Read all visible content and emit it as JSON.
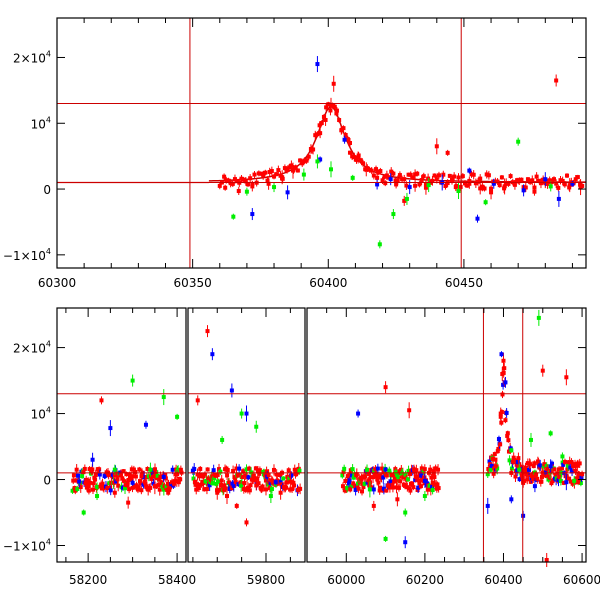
{
  "chart_data": [
    {
      "type": "scatter",
      "panel": "top",
      "title": "",
      "xlabel": "",
      "ylabel": "",
      "xlim": [
        60300,
        60495
      ],
      "ylim": [
        -12000,
        26000
      ],
      "x_ticks": [
        {
          "value": 60300,
          "label": "60300"
        },
        {
          "value": 60350,
          "label": "60350"
        },
        {
          "value": 60400,
          "label": "60400"
        },
        {
          "value": 60450,
          "label": "60450"
        }
      ],
      "y_ticks": [
        {
          "value": -10000,
          "base": "−1×10",
          "exp": "4"
        },
        {
          "value": 0,
          "base": "0",
          "exp": ""
        },
        {
          "value": 10000,
          "base": "10",
          "exp": "4"
        },
        {
          "value": 20000,
          "base": "2×10",
          "exp": "4"
        }
      ],
      "hlines": [
        1000,
        13000
      ],
      "vlines": [
        60349,
        60449
      ],
      "line_color": "#cc0000",
      "series": [
        {
          "color": "#ff0000",
          "points": [
            [
              60362,
              200
            ],
            [
              60367,
              -300
            ],
            [
              60372,
              400
            ],
            [
              60378,
              800
            ],
            [
              60383,
              1800
            ],
            [
              60387,
              2800
            ],
            [
              60391,
              4200
            ],
            [
              60394,
              6000
            ],
            [
              60397,
              8500
            ],
            [
              60399,
              10500
            ],
            [
              60401,
              12800
            ],
            [
              60402,
              16000
            ],
            [
              60403,
              11500
            ],
            [
              60405,
              9000
            ],
            [
              60408,
              7000
            ],
            [
              60411,
              4800
            ],
            [
              60414,
              3000
            ],
            [
              60418,
              1700
            ],
            [
              60421,
              900
            ],
            [
              60425,
              700
            ],
            [
              60428,
              -1800
            ],
            [
              60432,
              500
            ],
            [
              60436,
              200
            ],
            [
              60440,
              6500
            ],
            [
              60444,
              5500
            ],
            [
              60447,
              300
            ],
            [
              60452,
              800
            ],
            [
              60456,
              100
            ],
            [
              60460,
              -500
            ],
            [
              60465,
              400
            ],
            [
              60470,
              1200
            ],
            [
              60476,
              -400
            ],
            [
              60480,
              900
            ],
            [
              60484,
              16500
            ],
            [
              60489,
              600
            ],
            [
              60493,
              300
            ]
          ]
        },
        {
          "color": "#0000ff",
          "points": [
            [
              60372,
              -3800
            ],
            [
              60385,
              -500
            ],
            [
              60396,
              19000
            ],
            [
              60397,
              4500
            ],
            [
              60406,
              7500
            ],
            [
              60418,
              700
            ],
            [
              60423,
              1500
            ],
            [
              60430,
              300
            ],
            [
              60442,
              1000
            ],
            [
              60452,
              2800
            ],
            [
              60455,
              -4500
            ],
            [
              60461,
              800
            ],
            [
              60472,
              -200
            ],
            [
              60480,
              1500
            ],
            [
              60485,
              -1500
            ],
            [
              60490,
              800
            ]
          ]
        },
        {
          "color": "#00ee00",
          "points": [
            [
              60365,
              -4200
            ],
            [
              60370,
              -400
            ],
            [
              60380,
              300
            ],
            [
              60391,
              2200
            ],
            [
              60396,
              4200
            ],
            [
              60401,
              3000
            ],
            [
              60409,
              1700
            ],
            [
              60419,
              -8400
            ],
            [
              60424,
              -3800
            ],
            [
              60429,
              -1500
            ],
            [
              60437,
              600
            ],
            [
              60448,
              -300
            ],
            [
              60458,
              -2000
            ],
            [
              60470,
              7200
            ],
            [
              60482,
              400
            ]
          ]
        }
      ]
    },
    {
      "type": "scatter",
      "panel": "bottom",
      "title": "",
      "xlabel": "",
      "ylabel": "",
      "broken_x_axis": true,
      "ylim": [
        -12500,
        26000
      ],
      "segments": [
        {
          "xlim": [
            58130,
            58420
          ],
          "ticks": [
            {
              "value": 58200,
              "label": "58200"
            },
            {
              "value": 58400,
              "label": "58400"
            }
          ]
        },
        {
          "xlim": [
            59640,
            59880
          ],
          "ticks": [
            {
              "value": 59800,
              "label": "59800"
            }
          ]
        },
        {
          "xlim": [
            59900,
            60610
          ],
          "ticks": [
            {
              "value": 60000,
              "label": "60000"
            },
            {
              "value": 60200,
              "label": "60200"
            },
            {
              "value": 60400,
              "label": "60400"
            },
            {
              "value": 60600,
              "label": "60600"
            }
          ]
        }
      ],
      "y_ticks": [
        {
          "value": -10000,
          "base": "−1×10",
          "exp": "4"
        },
        {
          "value": 0,
          "base": "0",
          "exp": ""
        },
        {
          "value": 10000,
          "base": "10",
          "exp": "4"
        },
        {
          "value": 20000,
          "base": "2×10",
          "exp": "4"
        }
      ],
      "hlines": [
        1000,
        13000
      ],
      "vlines": [
        60349,
        60449
      ],
      "line_color": "#cc0000",
      "series": [
        {
          "color": "#ff0000",
          "points": [
            [
              58200,
              -1000
            ],
            [
              58230,
              12000
            ],
            [
              58260,
              -2000
            ],
            [
              58290,
              -3500
            ],
            [
              58320,
              500
            ],
            [
              58350,
              -1000
            ],
            [
              58380,
              -2000
            ],
            [
              58400,
              800
            ],
            [
              59660,
              12000
            ],
            [
              59680,
              22500
            ],
            [
              59700,
              -2000
            ],
            [
              59720,
              -2500
            ],
            [
              59740,
              -4000
            ],
            [
              59760,
              -6500
            ],
            [
              59780,
              -900
            ],
            [
              59800,
              -1500
            ],
            [
              59830,
              -2000
            ],
            [
              59850,
              -300
            ],
            [
              60010,
              -1500
            ],
            [
              60040,
              -1800
            ],
            [
              60070,
              -4000
            ],
            [
              60100,
              14000
            ],
            [
              60130,
              -3000
            ],
            [
              60160,
              10500
            ],
            [
              60190,
              -1000
            ],
            [
              60220,
              -500
            ],
            [
              60380,
              2000
            ],
            [
              60393,
              10000
            ],
            [
              60397,
              16000
            ],
            [
              60400,
              18000
            ],
            [
              60405,
              9000
            ],
            [
              60420,
              1000
            ],
            [
              60450,
              -500
            ],
            [
              60500,
              16500
            ],
            [
              60510,
              -12500
            ],
            [
              60560,
              15500
            ],
            [
              60590,
              -400
            ]
          ]
        },
        {
          "color": "#0000ff",
          "points": [
            [
              58180,
              -300
            ],
            [
              58210,
              3000
            ],
            [
              58250,
              7800
            ],
            [
              58300,
              -500
            ],
            [
              58330,
              8300
            ],
            [
              58370,
              400
            ],
            [
              59690,
              19000
            ],
            [
              59730,
              13500
            ],
            [
              59760,
              10000
            ],
            [
              59820,
              -400
            ],
            [
              60030,
              10000
            ],
            [
              60070,
              -1500
            ],
            [
              60150,
              -9500
            ],
            [
              60200,
              -200
            ],
            [
              60360,
              -4000
            ],
            [
              60395,
              19000
            ],
            [
              60420,
              -3000
            ],
            [
              60450,
              -5500
            ],
            [
              60480,
              -1000
            ],
            [
              60520,
              2000
            ],
            [
              60560,
              -400
            ]
          ]
        },
        {
          "color": "#00ee00",
          "points": [
            [
              58190,
              -5000
            ],
            [
              58220,
              -2500
            ],
            [
              58260,
              1500
            ],
            [
              58300,
              15000
            ],
            [
              58340,
              1500
            ],
            [
              58370,
              12500
            ],
            [
              58400,
              9500
            ],
            [
              59710,
              6000
            ],
            [
              59750,
              10000
            ],
            [
              59780,
              8000
            ],
            [
              59810,
              -2500
            ],
            [
              60060,
              -1500
            ],
            [
              60100,
              -9000
            ],
            [
              60150,
              -5000
            ],
            [
              60200,
              -2500
            ],
            [
              60440,
              1500
            ],
            [
              60470,
              6000
            ],
            [
              60490,
              24500
            ],
            [
              60520,
              7000
            ],
            [
              60550,
              3500
            ],
            [
              60580,
              -200
            ]
          ]
        }
      ]
    }
  ]
}
